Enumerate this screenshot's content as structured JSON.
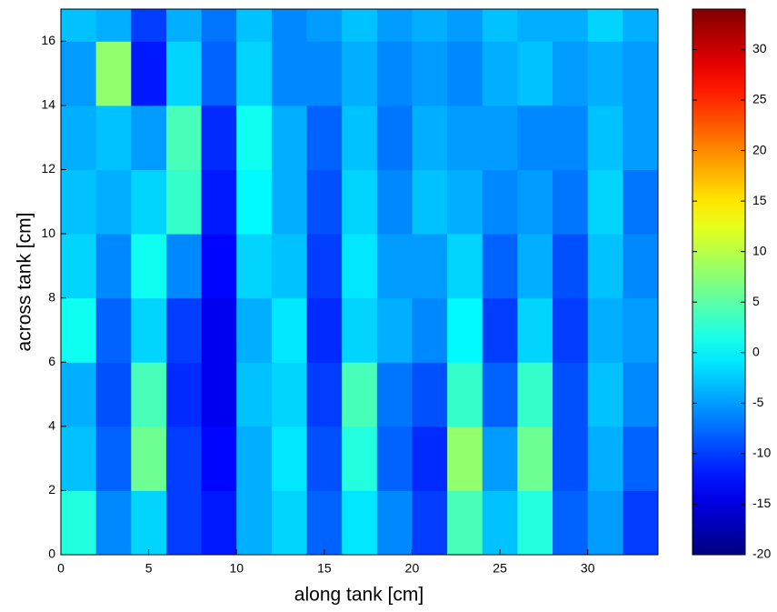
{
  "chart_data": {
    "type": "heatmap",
    "x_label": "along tank [cm]",
    "y_label": "across tank [cm]",
    "xlim": [
      0,
      34
    ],
    "ylim": [
      0,
      17
    ],
    "xticks": [
      0,
      5,
      10,
      15,
      20,
      25,
      30
    ],
    "yticks": [
      0,
      2,
      4,
      6,
      8,
      10,
      12,
      14,
      16
    ],
    "xbins": [
      0,
      2,
      4,
      6,
      8,
      10,
      12,
      14,
      16,
      18,
      20,
      22,
      24,
      26,
      28,
      30,
      32,
      34
    ],
    "ybins": [
      0,
      2,
      4,
      6,
      8,
      10,
      12,
      14,
      16,
      17
    ],
    "colormap": "jet",
    "clim": [
      -20,
      34
    ],
    "cticks": [
      -20,
      -15,
      -10,
      -5,
      0,
      5,
      10,
      15,
      20,
      25,
      30
    ],
    "z": [
      [
        2,
        -6,
        -2,
        -10,
        -12,
        -4,
        -2,
        -8,
        -1,
        -6,
        -10,
        4,
        -3,
        2,
        -8,
        -5,
        -10
      ],
      [
        -3,
        -8,
        6,
        -10,
        -13,
        -4,
        -1,
        -9,
        2,
        -8,
        -11,
        8,
        -5,
        6,
        -9,
        -4,
        -8
      ],
      [
        -4,
        -9,
        4,
        -11,
        -14,
        -3,
        -2,
        -10,
        4,
        -7,
        -9,
        3,
        -8,
        3,
        -9,
        -3,
        -6
      ],
      [
        1,
        -8,
        -2,
        -10,
        -14,
        -4,
        -1,
        -11,
        -2,
        -4,
        -6,
        0,
        -10,
        -2,
        -10,
        -4,
        -5
      ],
      [
        -2,
        -6,
        1,
        -6,
        -13,
        -2,
        -3,
        -10,
        -1,
        -5,
        -5,
        -2,
        -8,
        -4,
        -9,
        -3,
        -6
      ],
      [
        -3,
        -4,
        -2,
        3,
        -12,
        0,
        -4,
        -9,
        -2,
        -6,
        -3,
        -4,
        -6,
        -5,
        -7,
        -2,
        -7
      ],
      [
        -4,
        -3,
        -5,
        4,
        -11,
        1,
        -4,
        -8,
        -3,
        -7,
        -4,
        -5,
        -5,
        -6,
        -6,
        -3,
        -5
      ],
      [
        -5,
        8,
        -12,
        -2,
        -8,
        -2,
        -6,
        -6,
        -4,
        -6,
        -5,
        -6,
        -4,
        -3,
        -5,
        -4,
        -5
      ],
      [
        -3,
        -4,
        -10,
        -4,
        -7,
        -3,
        -6,
        -5,
        -3,
        -5,
        -4,
        -5,
        -3,
        -4,
        -4,
        -2,
        -4
      ]
    ]
  }
}
